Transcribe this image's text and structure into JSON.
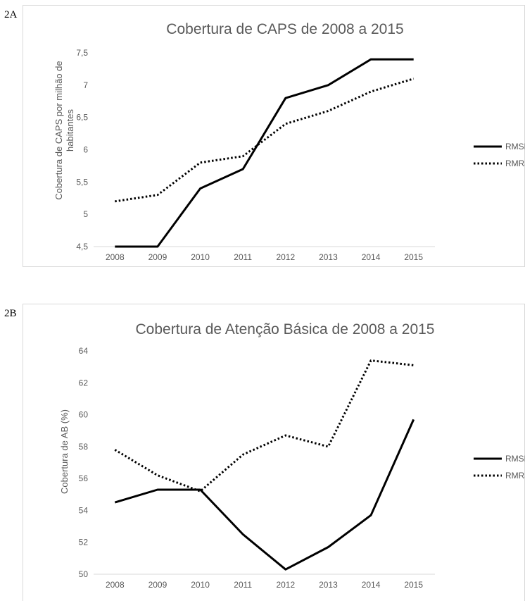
{
  "panels": [
    {
      "label": "2A"
    },
    {
      "label": "2B"
    }
  ],
  "chart_data": [
    {
      "type": "line",
      "title": "Cobertura de CAPS de 2008 a 2015",
      "xlabel": "",
      "ylabel_lines": [
        "Cobertura de CAPS por milhão de",
        "habitantes"
      ],
      "categories": [
        "2008",
        "2009",
        "2010",
        "2011",
        "2012",
        "2013",
        "2014",
        "2015"
      ],
      "ylim": [
        4.5,
        7.5
      ],
      "yticks": [
        "4,5",
        "5",
        "5,5",
        "6",
        "6,5",
        "7",
        "7,5"
      ],
      "ytick_values": [
        4.5,
        5,
        5.5,
        6,
        6.5,
        7,
        7.5
      ],
      "grid": false,
      "legend_position": "right",
      "series": [
        {
          "name": "RMSP",
          "style": "solid",
          "values": [
            4.5,
            4.5,
            5.4,
            5.7,
            6.8,
            7.0,
            7.4,
            7.4
          ]
        },
        {
          "name": "RMRJ",
          "style": "dotted",
          "values": [
            5.2,
            5.3,
            5.8,
            5.9,
            6.4,
            6.6,
            6.9,
            7.1
          ]
        }
      ]
    },
    {
      "type": "line",
      "title": "Cobertura de Atenção Básica de 2008 a 2015",
      "xlabel": "",
      "ylabel_lines": [
        "Cobertura de AB (%)"
      ],
      "categories": [
        "2008",
        "2009",
        "2010",
        "2011",
        "2012",
        "2013",
        "2014",
        "2015"
      ],
      "ylim": [
        50,
        64
      ],
      "yticks": [
        "50",
        "52",
        "54",
        "56",
        "58",
        "60",
        "62",
        "64"
      ],
      "ytick_values": [
        50,
        52,
        54,
        56,
        58,
        60,
        62,
        64
      ],
      "grid": false,
      "legend_position": "right",
      "series": [
        {
          "name": "RMSP",
          "style": "solid",
          "values": [
            54.5,
            55.3,
            55.3,
            52.5,
            50.3,
            51.7,
            53.7,
            59.7
          ]
        },
        {
          "name": "RMRJ",
          "style": "dotted",
          "values": [
            57.8,
            56.2,
            55.2,
            57.5,
            58.7,
            58.0,
            63.4,
            63.1
          ]
        }
      ]
    }
  ]
}
